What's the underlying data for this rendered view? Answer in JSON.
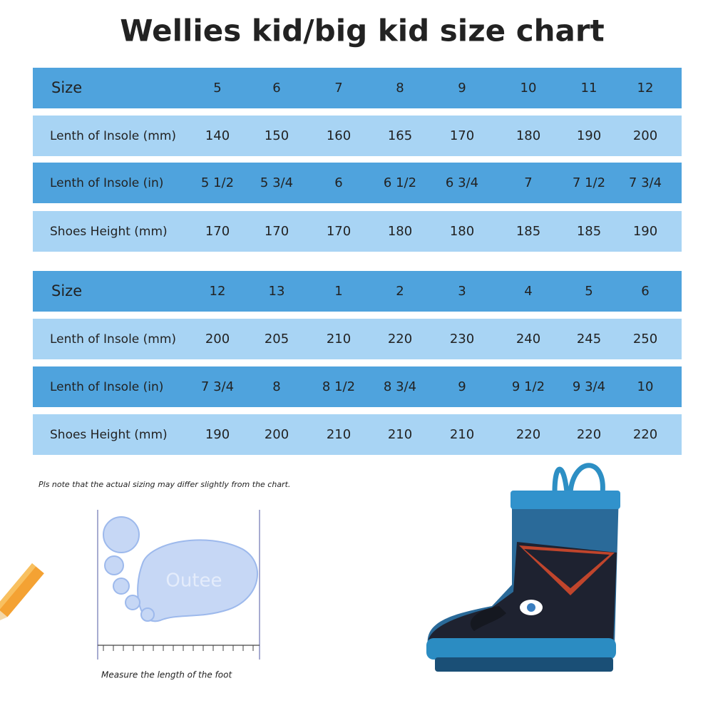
{
  "header": {
    "title": "Wellies kid/big kid size chart"
  },
  "tables": [
    {
      "rows": [
        [
          "Size",
          "5",
          "6",
          "7",
          "8",
          "9",
          "10",
          "11",
          "12"
        ],
        [
          "Lenth of Insole (mm)",
          "140",
          "150",
          "160",
          "165",
          "170",
          "180",
          "190",
          "200"
        ],
        [
          "Lenth of Insole (in)",
          "5 1/2",
          "5 3/4",
          "6",
          "6 1/2",
          "6 3/4",
          "7",
          "7 1/2",
          "7 3/4"
        ],
        [
          "Shoes Height (mm)",
          "170",
          "170",
          "170",
          "180",
          "180",
          "185",
          "185",
          "190"
        ]
      ]
    },
    {
      "rows": [
        [
          "Size",
          "12",
          "13",
          "1",
          "2",
          "3",
          "4",
          "5",
          "6"
        ],
        [
          "Lenth of Insole (mm)",
          "200",
          "205",
          "210",
          "220",
          "230",
          "240",
          "245",
          "250"
        ],
        [
          "Lenth of Insole (in)",
          "7 3/4",
          "8",
          "8 1/2",
          "8 3/4",
          "9",
          "9 1/2",
          "9 3/4",
          "10"
        ],
        [
          "Shoes Height (mm)",
          "190",
          "200",
          "210",
          "210",
          "210",
          "220",
          "220",
          "220"
        ]
      ]
    }
  ],
  "note": "Pls note that the actual sizing may differ slightly from the chart.",
  "illustration": {
    "watermark": "Outee",
    "caption": "Measure the length of the foot"
  }
}
